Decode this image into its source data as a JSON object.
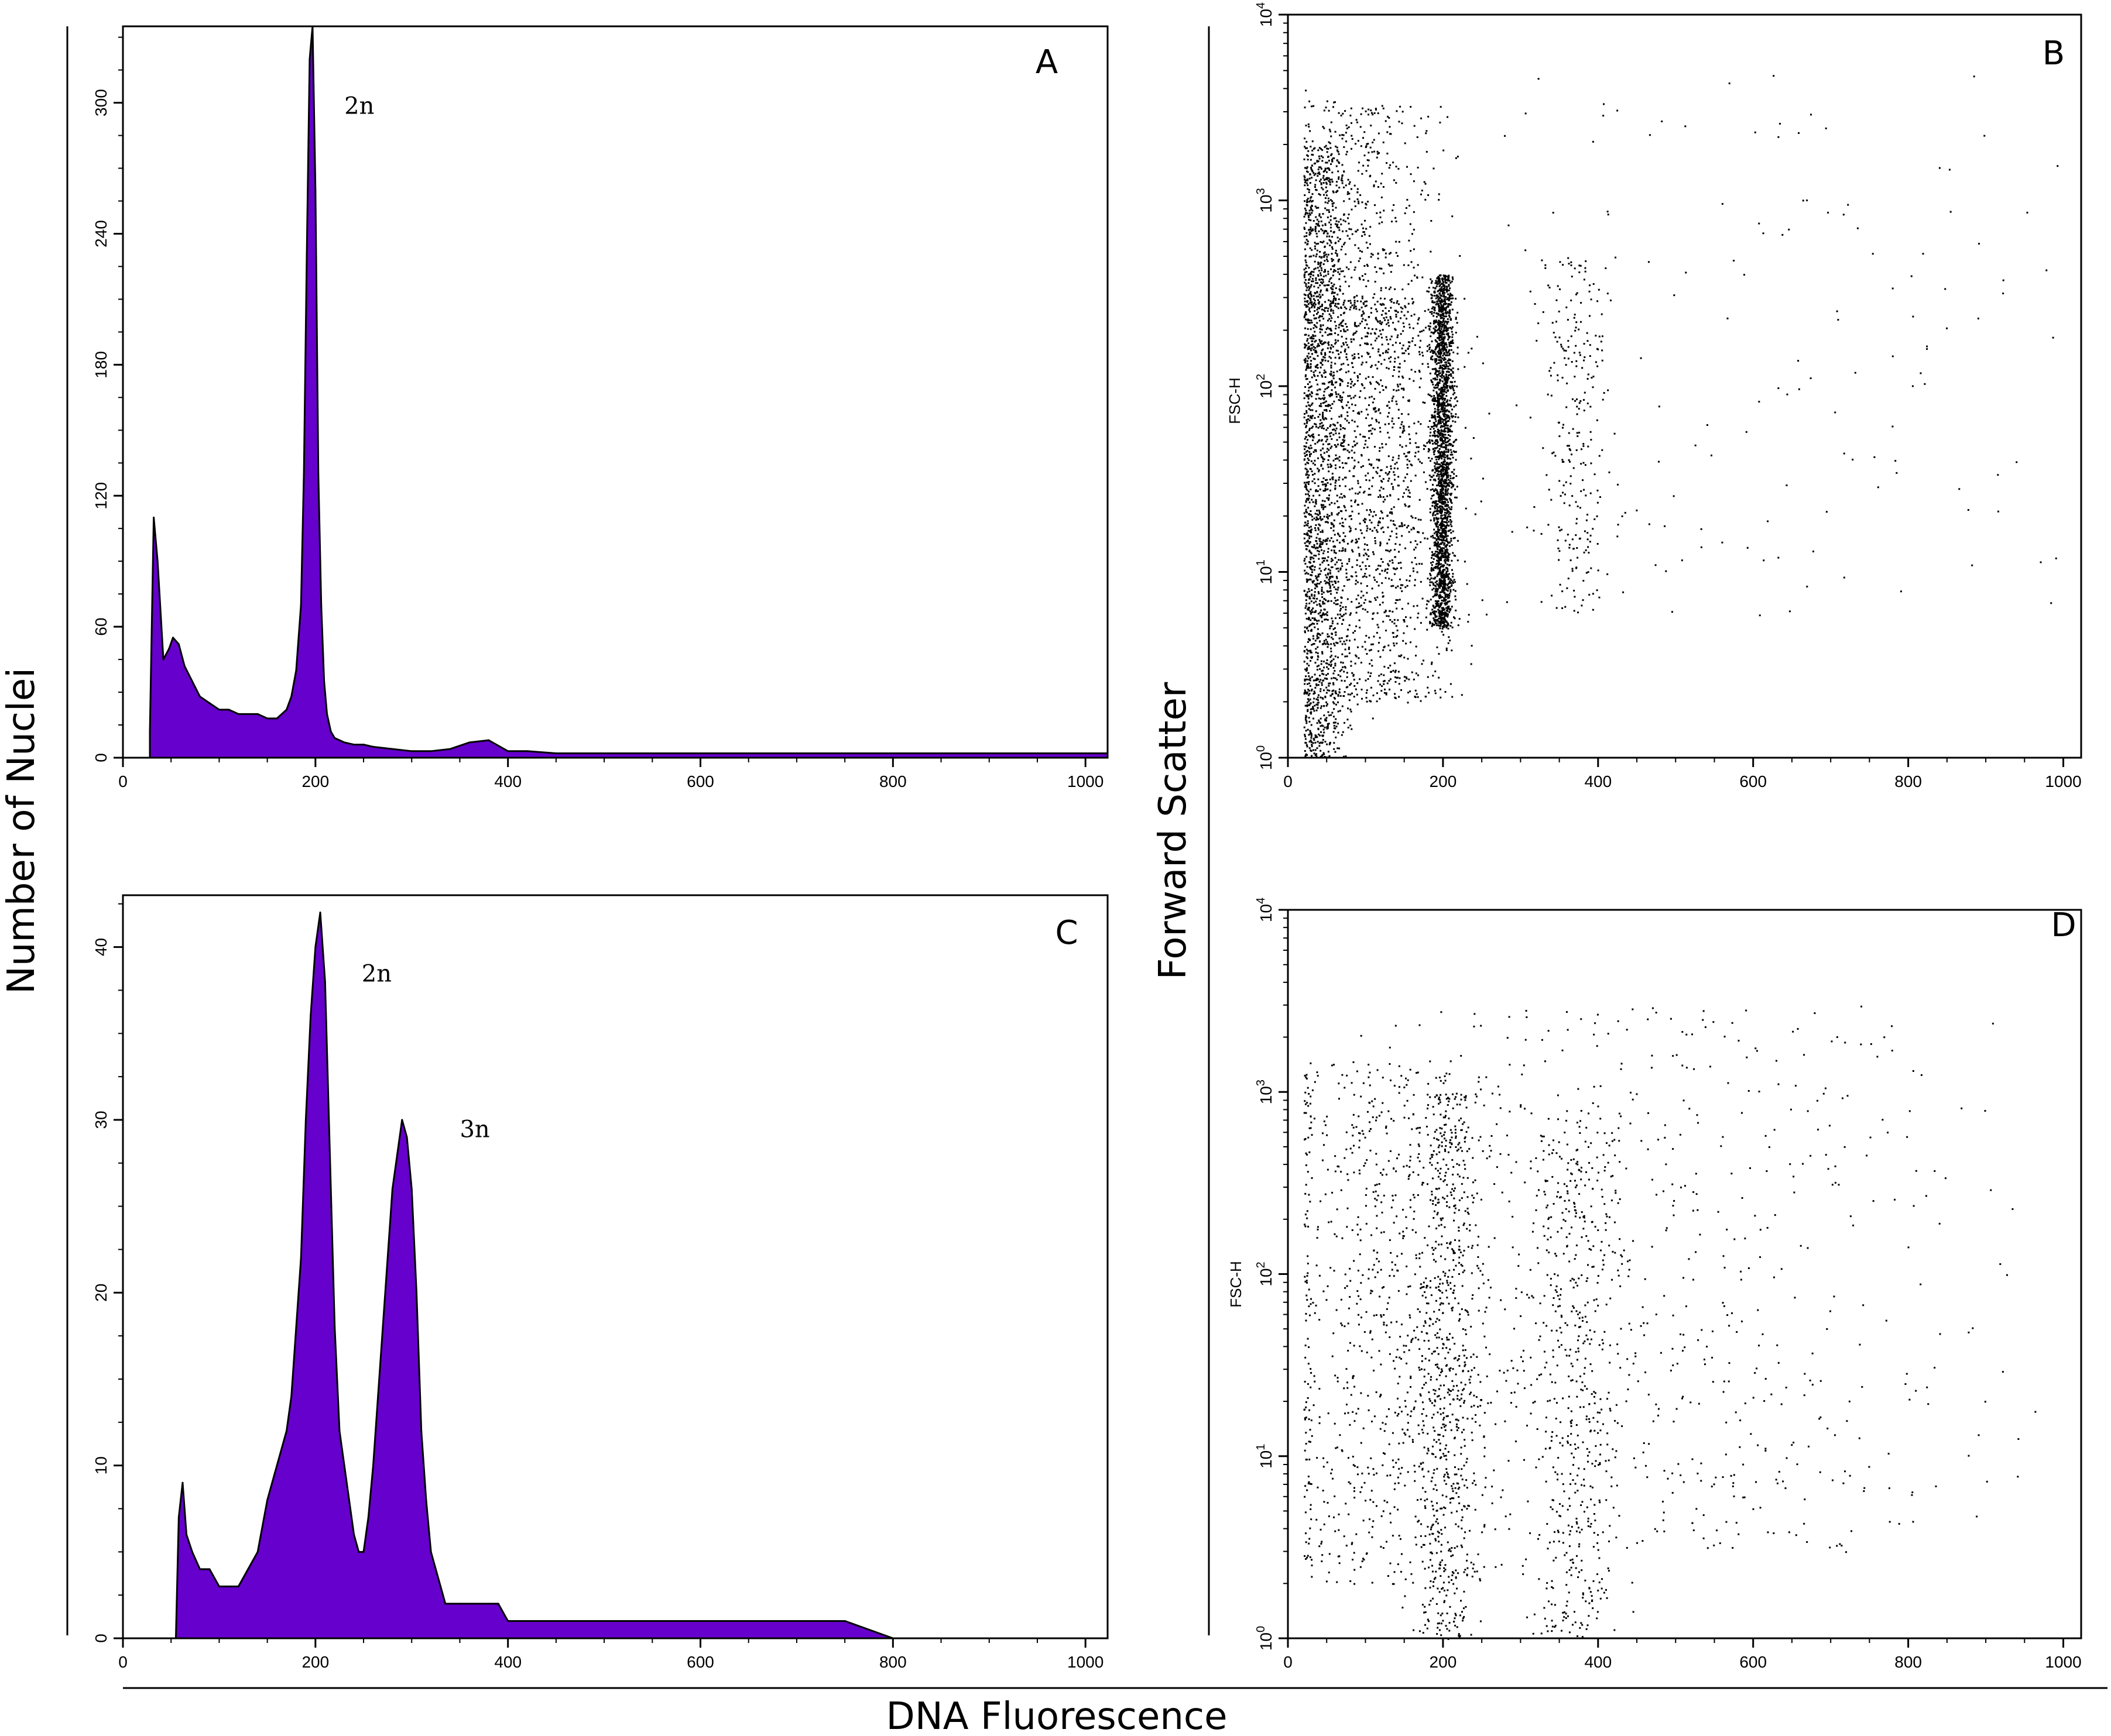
{
  "figure": {
    "shared_ylabel_left": "Number of Nuclei",
    "shared_ylabel_right": "Forward Scatter",
    "shared_xlabel": "DNA Fluorescence"
  },
  "colors": {
    "fill": "#6600cc",
    "stroke": "#000000",
    "dot": "#000000"
  },
  "chart_data": [
    {
      "panel": "A",
      "type": "area",
      "xlim": [
        0,
        1023
      ],
      "ylim": [
        0,
        335
      ],
      "xticks": [
        0,
        200,
        400,
        600,
        800,
        1000
      ],
      "yticks": [
        0,
        60,
        120,
        180,
        240,
        300
      ],
      "annotations": [
        {
          "text": "2n",
          "x": 230,
          "y": 295
        }
      ],
      "x": [
        28,
        32,
        36,
        42,
        48,
        52,
        58,
        64,
        72,
        80,
        90,
        100,
        110,
        120,
        130,
        140,
        150,
        160,
        170,
        175,
        180,
        185,
        188,
        191,
        194,
        197,
        200,
        203,
        206,
        209,
        212,
        216,
        220,
        225,
        230,
        240,
        250,
        260,
        280,
        300,
        320,
        340,
        360,
        380,
        400,
        420,
        450,
        500,
        550,
        600,
        700,
        800,
        900,
        1000,
        1023
      ],
      "y": [
        12,
        110,
        90,
        45,
        50,
        55,
        52,
        42,
        35,
        28,
        25,
        22,
        22,
        20,
        20,
        20,
        18,
        18,
        22,
        28,
        40,
        70,
        130,
        230,
        320,
        335,
        260,
        130,
        70,
        35,
        20,
        12,
        9,
        8,
        7,
        6,
        6,
        5,
        4,
        3,
        3,
        4,
        7,
        8,
        3,
        3,
        2,
        2,
        2,
        2,
        2,
        2,
        2,
        2,
        2
      ]
    },
    {
      "panel": "B",
      "type": "scatter",
      "ylabel": "FSC-H",
      "yscale": "log",
      "xlim": [
        0,
        1023
      ],
      "ylim": [
        1,
        10000
      ],
      "xticks": [
        0,
        200,
        400,
        600,
        800,
        1000
      ],
      "yticks": [
        1,
        10,
        100,
        1000,
        10000
      ],
      "populations": [
        {
          "x_center": 40,
          "x_spread": 18,
          "y_min": 1,
          "y_max": 2000,
          "count": 1800
        },
        {
          "x_center": 110,
          "x_spread": 50,
          "y_min": 2,
          "y_max": 300,
          "count": 1400
        },
        {
          "x_center": 100,
          "x_spread": 45,
          "y_min": 150,
          "y_max": 3500,
          "count": 500
        },
        {
          "x_center": 198,
          "x_spread": 7,
          "y_min": 5,
          "y_max": 400,
          "count": 2200
        },
        {
          "x_center": 370,
          "x_spread": 22,
          "y_min": 6,
          "y_max": 500,
          "count": 260
        },
        {
          "x_center": 600,
          "x_spread": 280,
          "y_min": 5,
          "y_max": 5000,
          "count": 170
        }
      ]
    },
    {
      "panel": "C",
      "type": "area",
      "xlim": [
        0,
        1023
      ],
      "ylim": [
        0,
        43
      ],
      "xticks": [
        0,
        200,
        400,
        600,
        800,
        1000
      ],
      "yticks": [
        0,
        10,
        20,
        30,
        40
      ],
      "annotations": [
        {
          "text": "2n",
          "x": 248,
          "y": 38
        },
        {
          "x": 350,
          "y": 29,
          "text": "3n"
        }
      ],
      "x": [
        55,
        58,
        62,
        66,
        72,
        80,
        90,
        100,
        110,
        120,
        130,
        140,
        150,
        160,
        170,
        175,
        180,
        185,
        190,
        195,
        200,
        205,
        210,
        215,
        220,
        225,
        230,
        235,
        240,
        245,
        250,
        255,
        260,
        265,
        270,
        275,
        280,
        285,
        290,
        295,
        300,
        305,
        310,
        315,
        320,
        325,
        330,
        335,
        340,
        350,
        360,
        370,
        380,
        390,
        400,
        410,
        420,
        430,
        440,
        450,
        470,
        500,
        550,
        600,
        650,
        700,
        750,
        800,
        850
      ],
      "y": [
        0,
        7,
        9,
        6,
        5,
        4,
        4,
        3,
        3,
        3,
        4,
        5,
        8,
        10,
        12,
        14,
        18,
        22,
        30,
        36,
        40,
        42,
        38,
        28,
        18,
        12,
        10,
        8,
        6,
        5,
        5,
        7,
        10,
        14,
        18,
        22,
        26,
        28,
        30,
        29,
        26,
        20,
        12,
        8,
        5,
        4,
        3,
        2,
        2,
        2,
        2,
        2,
        2,
        2,
        1,
        1,
        1,
        1,
        1,
        1,
        1,
        1,
        1,
        1,
        1,
        1,
        1,
        0,
        0
      ]
    },
    {
      "panel": "D",
      "type": "scatter",
      "ylabel": "FSC-H",
      "yscale": "log",
      "xlim": [
        0,
        1023
      ],
      "ylim": [
        1,
        10000
      ],
      "xticks": [
        0,
        200,
        400,
        600,
        800,
        1000
      ],
      "yticks": [
        1,
        10,
        100,
        1000,
        10000
      ],
      "populations": [
        {
          "x_center": 130,
          "x_spread": 80,
          "y_min": 2,
          "y_max": 1500,
          "count": 900
        },
        {
          "x_center": 205,
          "x_spread": 20,
          "y_min": 1,
          "y_max": 1000,
          "count": 650
        },
        {
          "x_center": 370,
          "x_spread": 30,
          "y_min": 1,
          "y_max": 800,
          "count": 550
        },
        {
          "x_center": 500,
          "x_spread": 200,
          "y_min": 3,
          "y_max": 3000,
          "count": 600
        }
      ]
    }
  ]
}
